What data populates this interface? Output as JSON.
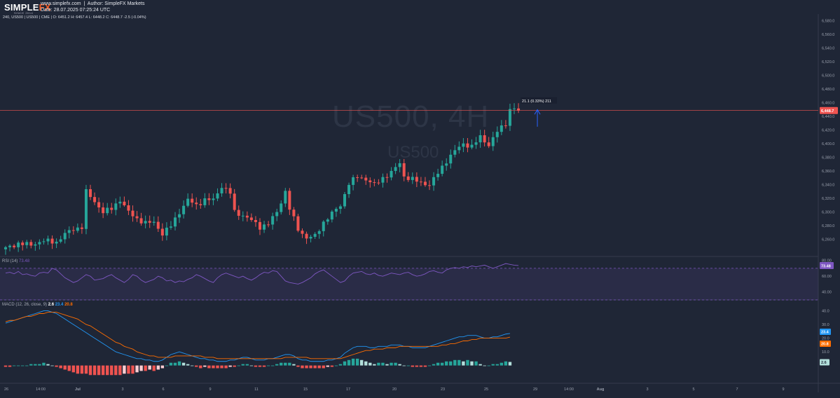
{
  "header": {
    "logo_text": "SIMPLE",
    "logo_fx": "FX",
    "logo_sub": "SINCE 2014",
    "site": "www.simplefx.com",
    "author": "Author: SimpleFX Markets",
    "date": "Date: 28.07.2025 07:25:24 UTC"
  },
  "symbol_info": "240, US500 | US500 | CME | O: 6451.2 H: 6457.4 L: 6448.2 C: 6448.7 -2.5 (-0.04%)",
  "watermark": {
    "main": "US500, 4H",
    "sub": "US500"
  },
  "colors": {
    "up": "#26a69a",
    "down": "#ef5350",
    "background": "#1f2636",
    "price_line": "#ef5350",
    "rsi": "#7e57c2",
    "macd": "#2196f3",
    "signal": "#ff6d00"
  },
  "chart_data": [
    {
      "type": "candlestick",
      "name": "price",
      "ylim": [
        6235,
        6590
      ],
      "y_ticks": [
        6260,
        6280,
        6300,
        6320,
        6340,
        6360,
        6380,
        6400,
        6420,
        6440,
        6460,
        6480,
        6500,
        6520,
        6540,
        6560,
        6580
      ],
      "x_ticks": [
        "26",
        "14:00",
        "Jul",
        "3",
        "6",
        "9",
        "11",
        "15",
        "17",
        "20",
        "23",
        "25",
        "29",
        "14:00",
        "Aug",
        "3",
        "5",
        "7",
        "9"
      ],
      "last_price": 6448.7,
      "last_price_label": "6,448.7",
      "annotation": {
        "text": "21.1 (0.33%) 211",
        "direction": "up"
      },
      "waypoints": [
        [
          0,
          6247
        ],
        [
          3,
          6254
        ],
        [
          6,
          6252
        ],
        [
          9,
          6258
        ],
        [
          12,
          6256
        ],
        [
          14,
          6268
        ],
        [
          16,
          6275
        ],
        [
          18,
          6278
        ],
        [
          19,
          6330
        ],
        [
          21,
          6315
        ],
        [
          23,
          6300
        ],
        [
          25,
          6305
        ],
        [
          27,
          6318
        ],
        [
          29,
          6300
        ],
        [
          31,
          6290
        ],
        [
          33,
          6284
        ],
        [
          35,
          6285
        ],
        [
          37,
          6268
        ],
        [
          39,
          6280
        ],
        [
          41,
          6300
        ],
        [
          43,
          6318
        ],
        [
          45,
          6310
        ],
        [
          47,
          6318
        ],
        [
          49,
          6318
        ],
        [
          51,
          6338
        ],
        [
          53,
          6328
        ],
        [
          54,
          6300
        ],
        [
          56,
          6295
        ],
        [
          58,
          6288
        ],
        [
          60,
          6278
        ],
        [
          62,
          6283
        ],
        [
          64,
          6300
        ],
        [
          66,
          6330
        ],
        [
          67,
          6305
        ],
        [
          69,
          6275
        ],
        [
          71,
          6262
        ],
        [
          73,
          6265
        ],
        [
          75,
          6285
        ],
        [
          77,
          6298
        ],
        [
          79,
          6310
        ],
        [
          81,
          6342
        ],
        [
          83,
          6352
        ],
        [
          85,
          6348
        ],
        [
          87,
          6340
        ],
        [
          89,
          6350
        ],
        [
          91,
          6358
        ],
        [
          93,
          6372
        ],
        [
          94,
          6352
        ],
        [
          96,
          6348
        ],
        [
          98,
          6343
        ],
        [
          100,
          6340
        ],
        [
          102,
          6357
        ],
        [
          104,
          6375
        ],
        [
          106,
          6390
        ],
        [
          108,
          6400
        ],
        [
          110,
          6396
        ],
        [
          112,
          6410
        ],
        [
          114,
          6398
        ],
        [
          116,
          6418
        ],
        [
          118,
          6430
        ],
        [
          119,
          6450
        ],
        [
          120,
          6452
        ],
        [
          121,
          6448.7
        ]
      ]
    },
    {
      "type": "line",
      "name": "RSI",
      "label": "RSI (14)",
      "value": 73.48,
      "value_label": "73.48",
      "ylim": [
        30,
        85
      ],
      "y_ticks": [
        "80.00",
        "60.00",
        "40.00"
      ],
      "levels": [
        70,
        30
      ],
      "values": [
        64,
        65,
        63,
        66,
        62,
        63,
        61,
        60,
        64,
        65,
        64,
        70,
        68,
        63,
        58,
        55,
        52,
        54,
        58,
        62,
        60,
        55,
        56,
        57,
        60,
        62,
        58,
        55,
        52,
        56,
        62,
        60,
        55,
        52,
        54,
        56,
        60,
        58,
        54,
        55,
        52,
        54,
        53,
        56,
        58,
        62,
        60,
        57,
        54,
        52,
        58,
        62,
        64,
        62,
        60,
        58,
        60,
        57,
        55,
        58,
        62,
        65,
        64,
        67,
        66,
        60,
        54,
        52,
        51,
        50,
        52,
        55,
        58,
        63,
        66,
        68,
        64,
        60,
        56,
        52,
        54,
        60,
        64,
        65,
        66,
        63,
        62,
        64,
        61,
        60,
        62,
        64,
        63,
        62,
        64,
        65,
        62,
        60,
        61,
        63,
        66,
        67,
        65,
        64,
        68,
        70,
        71,
        70,
        72,
        71,
        73,
        72,
        73,
        74,
        72,
        70,
        72,
        74,
        76,
        75,
        74,
        73.48
      ]
    },
    {
      "type": "line+histogram",
      "name": "MACD",
      "label": "MACD (12, 26, close, 9)",
      "values_label": [
        "2.6",
        "23.4",
        "20.8"
      ],
      "ylim": [
        -12,
        48
      ],
      "y_ticks": [
        "40.0",
        "30.0",
        "20.0",
        "10.0"
      ],
      "macd": [
        31,
        32,
        33,
        34,
        35,
        36,
        37,
        38,
        39,
        40,
        40,
        39,
        38,
        36,
        34,
        32,
        30,
        28,
        26,
        24,
        22,
        20,
        18,
        16,
        14,
        12,
        10,
        9,
        8,
        7,
        6,
        5,
        5,
        4,
        4,
        3,
        3,
        4,
        6,
        8,
        9,
        10,
        9,
        8,
        7,
        6,
        5,
        5,
        4,
        4,
        3,
        3,
        3,
        4,
        4,
        5,
        6,
        6,
        5,
        4,
        4,
        4,
        5,
        5,
        6,
        7,
        8,
        8,
        7,
        5,
        4,
        4,
        3,
        3,
        3,
        3,
        4,
        4,
        5,
        6,
        9,
        11,
        13,
        14,
        14,
        14,
        13,
        13,
        14,
        14,
        14,
        15,
        15,
        15,
        14,
        14,
        13,
        13,
        13,
        13,
        14,
        15,
        16,
        17,
        18,
        19,
        20,
        21,
        21,
        22,
        22,
        22,
        21,
        20,
        20,
        21,
        21,
        22,
        23,
        23.4
      ],
      "signal": [
        32,
        33,
        33,
        34,
        35,
        36,
        36,
        37,
        38,
        38,
        39,
        39,
        39,
        38,
        37,
        36,
        35,
        34,
        32,
        30,
        29,
        27,
        25,
        23,
        21,
        19,
        17,
        16,
        14,
        13,
        12,
        10,
        9,
        8,
        7,
        7,
        6,
        6,
        6,
        6,
        7,
        7,
        7,
        7,
        7,
        7,
        7,
        6,
        6,
        6,
        5,
        5,
        5,
        5,
        5,
        5,
        5,
        5,
        5,
        5,
        5,
        5,
        5,
        5,
        5,
        5,
        6,
        6,
        6,
        6,
        6,
        6,
        5,
        5,
        5,
        5,
        5,
        5,
        5,
        5,
        6,
        7,
        8,
        9,
        10,
        11,
        11,
        12,
        12,
        12,
        13,
        13,
        13,
        14,
        14,
        14,
        14,
        14,
        14,
        14,
        14,
        14,
        14,
        15,
        15,
        16,
        16,
        17,
        18,
        18,
        19,
        19,
        20,
        20,
        20,
        20,
        20,
        20,
        20,
        20.8
      ]
    }
  ]
}
